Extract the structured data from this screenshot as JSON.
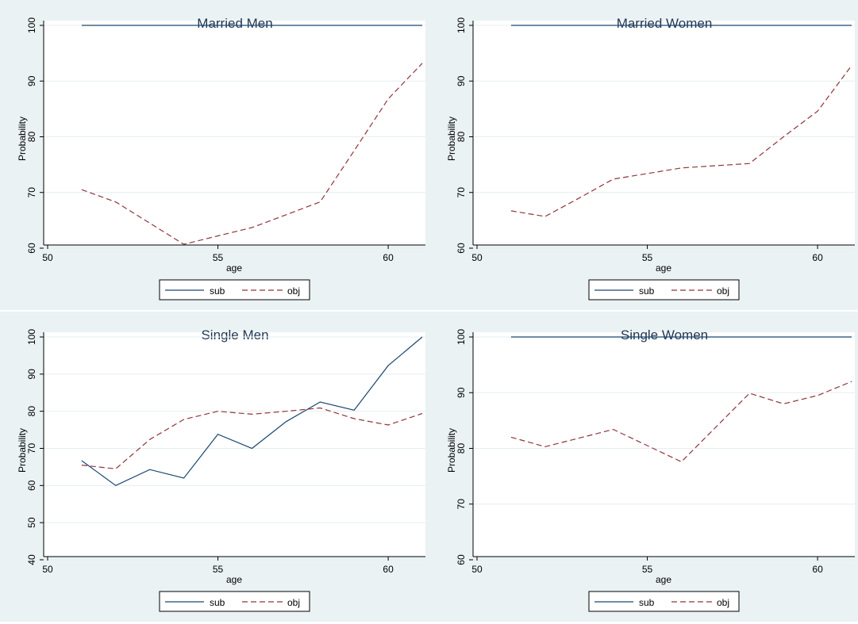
{
  "colors": {
    "panel_bg": "#eaf2f3",
    "plot_bg": "#ffffff",
    "grid": "#e6eef0",
    "title": "#1e3754",
    "sub_line": "#1a476f",
    "obj_line": "#90353b"
  },
  "legend": {
    "sub_label": "sub",
    "obj_label": "obj"
  },
  "chart_data": [
    {
      "type": "line",
      "title": "Married Men",
      "xlabel": "age",
      "ylabel": "Probability",
      "xlim": [
        50,
        61
      ],
      "ylim": [
        60,
        100
      ],
      "xticks": [
        "50",
        "55",
        "60"
      ],
      "yticks": [
        "60",
        "70",
        "80",
        "90",
        "100"
      ],
      "legend_position": "bottom",
      "grid": true,
      "series": [
        {
          "name": "sub",
          "style": "solid",
          "points": [
            [
              51,
              100
            ],
            [
              61,
              100
            ]
          ]
        },
        {
          "name": "obj",
          "style": "dashed",
          "points": [
            [
              51,
              70.5
            ],
            [
              52,
              68.3
            ],
            [
              53,
              64.5
            ],
            [
              54,
              60.7
            ],
            [
              55,
              62.2
            ],
            [
              56,
              63.7
            ],
            [
              57,
              66.0
            ],
            [
              58,
              68.3
            ],
            [
              59,
              77.5
            ],
            [
              60,
              86.8
            ],
            [
              61,
              93.2
            ]
          ]
        }
      ]
    },
    {
      "type": "line",
      "title": "Married Women",
      "xlabel": "age",
      "ylabel": "Probability",
      "xlim": [
        50,
        61
      ],
      "ylim": [
        60,
        100
      ],
      "xticks": [
        "50",
        "55",
        "60"
      ],
      "yticks": [
        "60",
        "70",
        "80",
        "90",
        "100"
      ],
      "legend_position": "bottom",
      "grid": true,
      "series": [
        {
          "name": "sub",
          "style": "solid",
          "points": [
            [
              51,
              100
            ],
            [
              61,
              100
            ]
          ]
        },
        {
          "name": "obj",
          "style": "dashed",
          "points": [
            [
              51,
              66.7
            ],
            [
              52,
              65.7
            ],
            [
              53,
              69.0
            ],
            [
              54,
              72.4
            ],
            [
              55,
              73.4
            ],
            [
              56,
              74.4
            ],
            [
              57,
              74.8
            ],
            [
              58,
              75.2
            ],
            [
              59,
              80.0
            ],
            [
              60,
              84.6
            ],
            [
              61,
              92.8
            ]
          ]
        }
      ]
    },
    {
      "type": "line",
      "title": "Single Men",
      "xlabel": "age",
      "ylabel": "Probability",
      "xlim": [
        50,
        61
      ],
      "ylim": [
        40,
        100
      ],
      "xticks": [
        "50",
        "55",
        "60"
      ],
      "yticks": [
        "40",
        "50",
        "60",
        "70",
        "80",
        "90",
        "100"
      ],
      "legend_position": "bottom",
      "grid": true,
      "series": [
        {
          "name": "sub",
          "style": "solid",
          "points": [
            [
              51,
              66.7
            ],
            [
              52,
              60.0
            ],
            [
              53,
              64.3
            ],
            [
              54,
              62.0
            ],
            [
              55,
              73.8
            ],
            [
              56,
              70.0
            ],
            [
              57,
              77.2
            ],
            [
              58,
              82.5
            ],
            [
              59,
              80.3
            ],
            [
              60,
              92.3
            ],
            [
              61,
              100
            ]
          ]
        },
        {
          "name": "obj",
          "style": "dashed",
          "points": [
            [
              51,
              65.5
            ],
            [
              52,
              64.5
            ],
            [
              53,
              72.4
            ],
            [
              54,
              77.8
            ],
            [
              55,
              80.0
            ],
            [
              56,
              79.2
            ],
            [
              57,
              80.0
            ],
            [
              58,
              80.9
            ],
            [
              59,
              78.0
            ],
            [
              60,
              76.3
            ],
            [
              61,
              79.4
            ]
          ]
        }
      ]
    },
    {
      "type": "line",
      "title": "Single Women",
      "xlabel": "age",
      "ylabel": "Probability",
      "xlim": [
        50,
        61
      ],
      "ylim": [
        60,
        100
      ],
      "xticks": [
        "50",
        "55",
        "60"
      ],
      "yticks": [
        "60",
        "70",
        "80",
        "90",
        "100"
      ],
      "legend_position": "bottom",
      "grid": true,
      "series": [
        {
          "name": "sub",
          "style": "solid",
          "points": [
            [
              51,
              100
            ],
            [
              61,
              100
            ]
          ]
        },
        {
          "name": "obj",
          "style": "dashed",
          "points": [
            [
              51,
              82.0
            ],
            [
              52,
              80.3
            ],
            [
              54,
              83.4
            ],
            [
              56,
              77.6
            ],
            [
              58,
              89.9
            ],
            [
              59,
              88.0
            ],
            [
              60,
              89.5
            ],
            [
              61,
              92.0
            ]
          ]
        }
      ]
    }
  ]
}
